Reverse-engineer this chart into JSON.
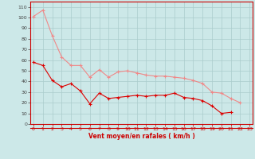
{
  "x": [
    0,
    1,
    2,
    3,
    4,
    5,
    6,
    7,
    8,
    9,
    10,
    11,
    12,
    13,
    14,
    15,
    16,
    17,
    18,
    19,
    20,
    21,
    22,
    23
  ],
  "rafales": [
    101,
    107,
    83,
    63,
    55,
    55,
    44,
    51,
    44,
    49,
    50,
    48,
    46,
    45,
    45,
    44,
    43,
    41,
    38,
    30,
    29,
    24,
    20,
    null
  ],
  "moyen": [
    58,
    55,
    41,
    35,
    38,
    31,
    19,
    29,
    24,
    25,
    26,
    27,
    26,
    27,
    27,
    29,
    25,
    24,
    22,
    17,
    10,
    11,
    null,
    null
  ],
  "bg_color": "#cce8e8",
  "grid_color": "#aacccc",
  "line_color_rafales": "#f08888",
  "line_color_moyen": "#dd0000",
  "xlabel": "Vent moyen/en rafales ( km/h )",
  "ylim": [
    0,
    115
  ],
  "xlim": [
    -0.3,
    23.3
  ],
  "yticks": [
    0,
    10,
    20,
    30,
    40,
    50,
    60,
    70,
    80,
    90,
    100,
    110
  ],
  "xticks": [
    0,
    1,
    2,
    3,
    4,
    5,
    6,
    7,
    8,
    9,
    10,
    11,
    12,
    13,
    14,
    15,
    16,
    17,
    18,
    19,
    20,
    21,
    22,
    23
  ],
  "arrow_angles": [
    0,
    0,
    0,
    0,
    0,
    0,
    0,
    0,
    0,
    0,
    0,
    0,
    0,
    0,
    0,
    0,
    0,
    0,
    0,
    15,
    20,
    25,
    30,
    35
  ]
}
